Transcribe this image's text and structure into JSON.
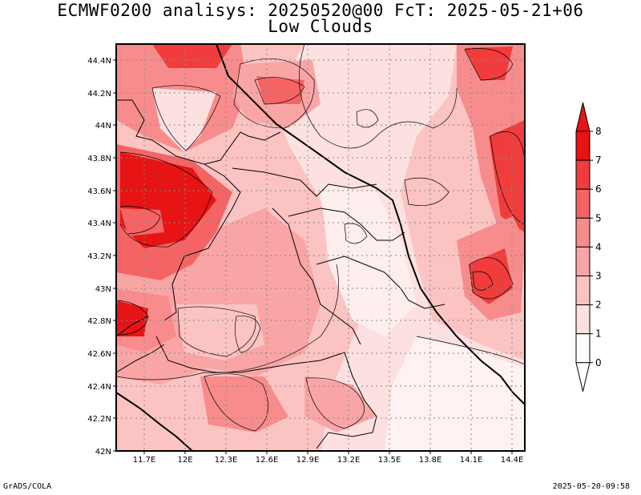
{
  "title_line1": "ECMWF0200 analisys: 20250520@00 FcT: 2025-05-21+06",
  "title_line2": "Low Clouds",
  "footer_left": "GrADS/COLA",
  "footer_right": "2025-05-20-09:58",
  "map": {
    "lon_ticks": [
      "11.7E",
      "12E",
      "12.3E",
      "12.6E",
      "12.9E",
      "13.2E",
      "13.5E",
      "13.8E",
      "14.1E",
      "14.4E"
    ],
    "lat_ticks": [
      "44.4N",
      "44.2N",
      "44N",
      "43.8N",
      "43.6N",
      "43.4N",
      "43.2N",
      "43N",
      "42.8N",
      "42.6N",
      "42.4N",
      "42.2N",
      "42N"
    ],
    "gridlines": true
  },
  "legend": {
    "labels": [
      "8",
      "7",
      "6",
      "5",
      "4",
      "3",
      "2",
      "1",
      "0"
    ],
    "colors": [
      "#e61414",
      "#f03c3c",
      "#f56464",
      "#f88c8c",
      "#faa5a5",
      "#fcc3c3",
      "#fde1e1",
      "#ffffff"
    ]
  }
}
